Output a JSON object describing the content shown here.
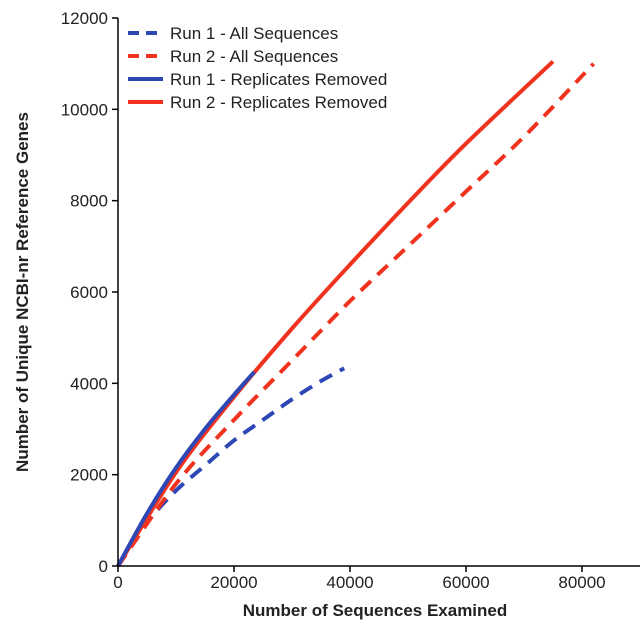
{
  "chart_data": {
    "type": "line",
    "xlabel": "Number of Sequences Examined",
    "ylabel": "Number of Unique NCBI-nr Reference Genes",
    "xlim": [
      0,
      90000
    ],
    "ylim": [
      0,
      12000
    ],
    "xticks": [
      0,
      20000,
      40000,
      60000,
      80000
    ],
    "yticks": [
      0,
      2000,
      4000,
      6000,
      8000,
      10000,
      12000
    ],
    "grid": false,
    "legend_position": "top-left",
    "series": [
      {
        "name": "Run 1 - All Sequences",
        "color": "#2d47b5",
        "style": "dashed",
        "x": [
          0,
          5000,
          10000,
          15000,
          20000,
          25000,
          30000,
          35000,
          39000
        ],
        "y": [
          0,
          950,
          1650,
          2200,
          2750,
          3200,
          3650,
          4050,
          4330
        ]
      },
      {
        "name": "Run 2 - All Sequences",
        "color": "#f0321e",
        "style": "dashed",
        "x": [
          0,
          10000,
          20000,
          30000,
          40000,
          50000,
          60000,
          70000,
          82000
        ],
        "y": [
          0,
          1800,
          3200,
          4500,
          5800,
          7000,
          8200,
          9400,
          11000
        ]
      },
      {
        "name": "Run 1 - Replicates Removed",
        "color": "#2d47b5",
        "style": "solid",
        "x": [
          0,
          5000,
          10000,
          15000,
          20000,
          23500
        ],
        "y": [
          0,
          1150,
          2150,
          3000,
          3750,
          4250
        ]
      },
      {
        "name": "Run 2 - Replicates Removed",
        "color": "#f0321e",
        "style": "solid",
        "x": [
          0,
          10000,
          20000,
          30000,
          40000,
          50000,
          60000,
          75000
        ],
        "y": [
          0,
          2050,
          3700,
          5200,
          6600,
          7950,
          9250,
          11050
        ]
      }
    ]
  }
}
